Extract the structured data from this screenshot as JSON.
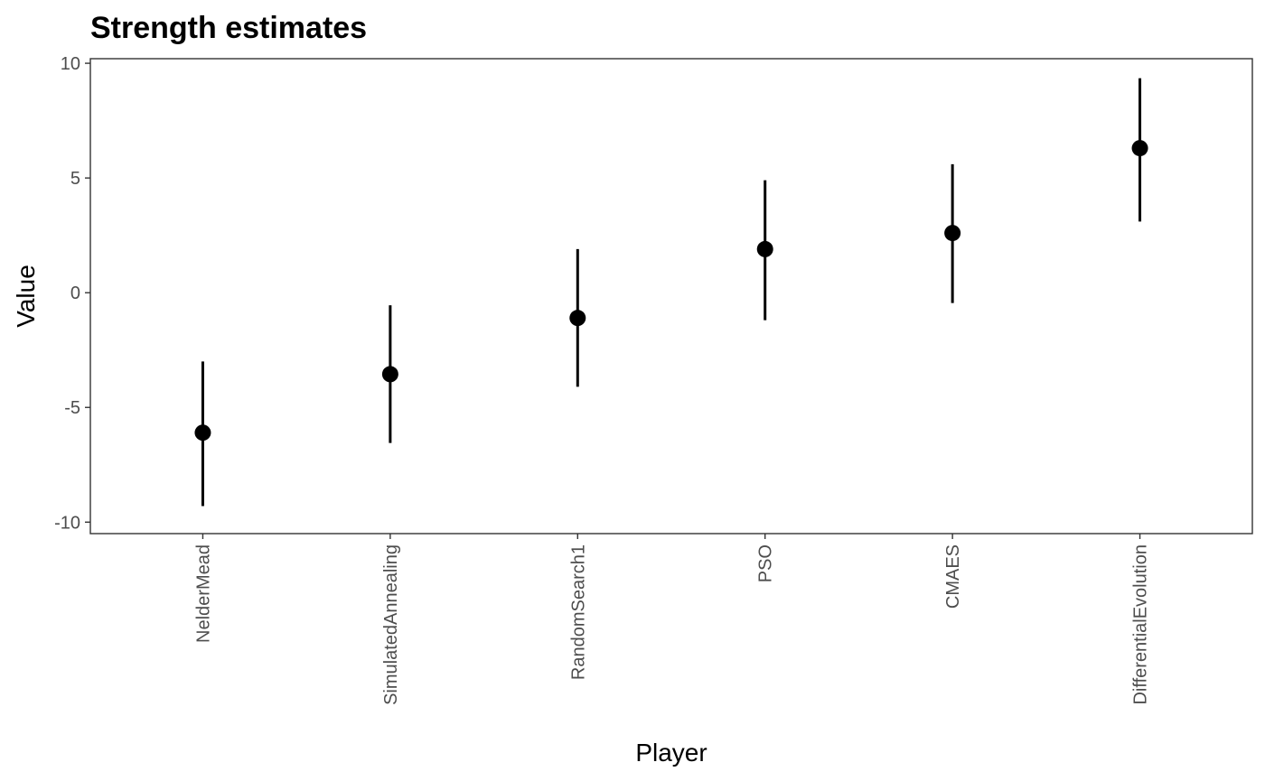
{
  "chart_data": {
    "type": "scatter",
    "title": "Strength estimates",
    "xlabel": "Player",
    "ylabel": "Value",
    "ylim": [
      -10.5,
      10.2
    ],
    "yticks": [
      -10,
      -5,
      0,
      5,
      10
    ],
    "ytick_labels": [
      "-10",
      "-5",
      "0",
      "5",
      "10"
    ],
    "categories": [
      "NelderMead",
      "SimulatedAnnealing",
      "RandomSearch1",
      "PSO",
      "CMAES",
      "DifferentialEvolution"
    ],
    "values": [
      -6.1,
      -3.55,
      -1.1,
      1.9,
      2.6,
      6.3
    ],
    "lower": [
      -9.3,
      -6.55,
      -4.1,
      -1.2,
      -0.45,
      3.1
    ],
    "upper": [
      -3.0,
      -0.55,
      1.9,
      4.9,
      5.6,
      9.35
    ],
    "grid": false,
    "legend": "none"
  }
}
